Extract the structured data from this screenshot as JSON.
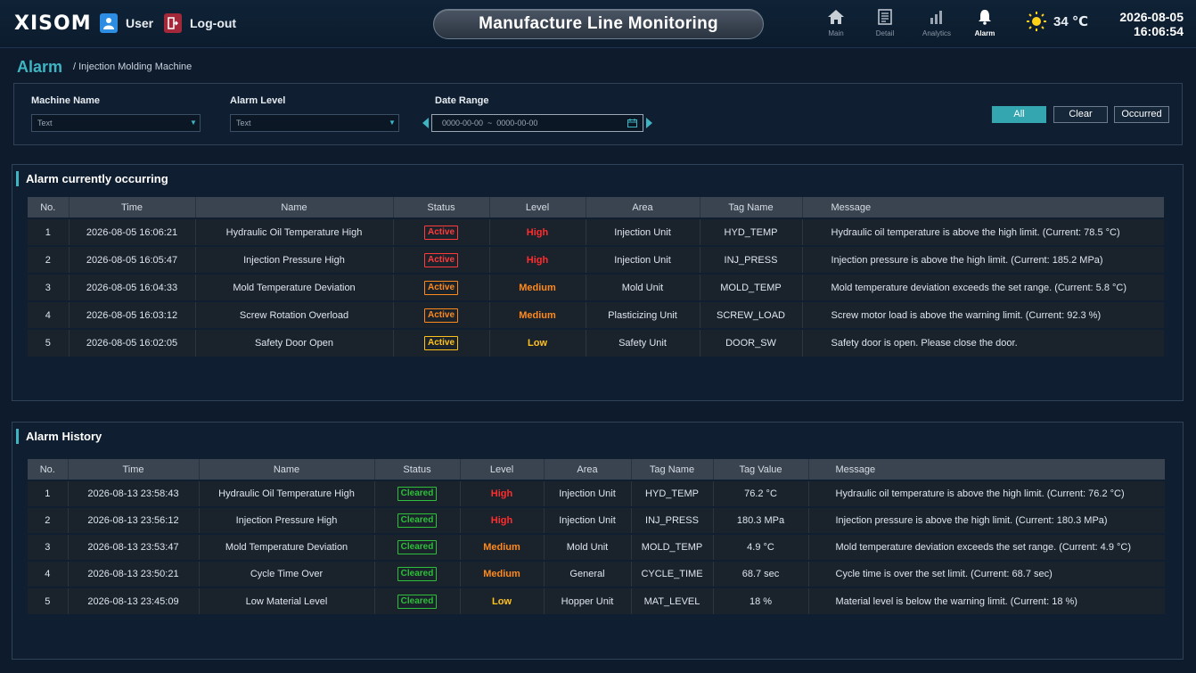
{
  "header": {
    "logo": "XISOM",
    "user_label": "User",
    "logout_label": "Log-out",
    "title": "Manufacture Line Monitoring",
    "nav": [
      {
        "label": "Main",
        "icon": "home-icon"
      },
      {
        "label": "Detail",
        "icon": "document-icon"
      },
      {
        "label": "Analytics",
        "icon": "bar-chart-icon"
      },
      {
        "label": "Alarm",
        "icon": "bell-icon"
      }
    ],
    "temperature": "34 ℃",
    "date": "2026-08-05",
    "time": "16:06:54"
  },
  "breadcrumb": {
    "title": "Alarm",
    "sub": "/ Injection Molding Machine"
  },
  "filter": {
    "machine_label": "Machine Name",
    "machine_value": "Text",
    "level_label": "Alarm Level",
    "level_value": "Text",
    "date_label": "Date Range",
    "date_value": "0000-00-00  ~  0000-00-00",
    "btn_all": "All",
    "btn_clear": "Clear",
    "btn_occurred": "Occurred"
  },
  "current": {
    "title": "Alarm currently occurring",
    "columns": [
      "No.",
      "Time",
      "Name",
      "Status",
      "Level",
      "Area",
      "Tag Name",
      "Message"
    ],
    "rows": [
      {
        "no": "1",
        "time": "2026-08-05 16:06:21",
        "name": "Hydraulic Oil Temperature High",
        "status": "Active",
        "level": "High",
        "area": "Injection Unit",
        "tag": "HYD_TEMP",
        "message": "Hydraulic oil temperature is above the high limit. (Current: 78.5 °C)"
      },
      {
        "no": "2",
        "time": "2026-08-05 16:05:47",
        "name": "Injection Pressure High",
        "status": "Active",
        "level": "High",
        "area": "Injection Unit",
        "tag": "INJ_PRESS",
        "message": "Injection pressure is above the high limit. (Current: 185.2 MPa)"
      },
      {
        "no": "3",
        "time": "2026-08-05 16:04:33",
        "name": "Mold Temperature Deviation",
        "status": "Active",
        "level": "Medium",
        "area": "Mold Unit",
        "tag": "MOLD_TEMP",
        "message": "Mold temperature deviation exceeds the set range. (Current: 5.8 °C)"
      },
      {
        "no": "4",
        "time": "2026-08-05 16:03:12",
        "name": "Screw Rotation Overload",
        "status": "Active",
        "level": "Medium",
        "area": "Plasticizing Unit",
        "tag": "SCREW_LOAD",
        "message": "Screw motor load is above the warning limit. (Current: 92.3 %)"
      },
      {
        "no": "5",
        "time": "2026-08-05 16:02:05",
        "name": "Safety Door Open",
        "status": "Active",
        "level": "Low",
        "area": "Safety Unit",
        "tag": "DOOR_SW",
        "message": "Safety door is open. Please close the door."
      }
    ]
  },
  "history": {
    "title": "Alarm History",
    "columns": [
      "No.",
      "Time",
      "Name",
      "Status",
      "Level",
      "Area",
      "Tag Name",
      "Tag Value",
      "Message"
    ],
    "rows": [
      {
        "no": "1",
        "time": "2026-08-13 23:58:43",
        "name": "Hydraulic Oil Temperature High",
        "status": "Cleared",
        "level": "High",
        "area": "Injection Unit",
        "tag": "HYD_TEMP",
        "value": "76.2 °C",
        "message": "Hydraulic oil temperature is above the high limit. (Current: 76.2 °C)"
      },
      {
        "no": "2",
        "time": "2026-08-13 23:56:12",
        "name": "Injection Pressure High",
        "status": "Cleared",
        "level": "High",
        "area": "Injection Unit",
        "tag": "INJ_PRESS",
        "value": "180.3 MPa",
        "message": "Injection pressure is above the high limit. (Current: 180.3 MPa)"
      },
      {
        "no": "3",
        "time": "2026-08-13 23:53:47",
        "name": "Mold Temperature Deviation",
        "status": "Cleared",
        "level": "Medium",
        "area": "Mold Unit",
        "tag": "MOLD_TEMP",
        "value": "4.9 °C",
        "message": "Mold temperature deviation exceeds the set range. (Current: 4.9 °C)"
      },
      {
        "no": "4",
        "time": "2026-08-13 23:50:21",
        "name": "Cycle Time Over",
        "status": "Cleared",
        "level": "Medium",
        "area": "General",
        "tag": "CYCLE_TIME",
        "value": "68.7 sec",
        "message": "Cycle time is over the set limit. (Current: 68.7 sec)"
      },
      {
        "no": "5",
        "time": "2026-08-13 23:45:09",
        "name": "Low Material Level",
        "status": "Cleared",
        "level": "Low",
        "area": "Hopper Unit",
        "tag": "MAT_LEVEL",
        "value": "18 %",
        "message": "Material level is below the warning limit. (Current: 18 %)"
      }
    ]
  },
  "colors": {
    "accent": "#3fb4c2",
    "level_high": "#ff2d2d",
    "level_medium": "#ff8a1c",
    "level_low": "#ffc21a",
    "status_active_high": "#ff3b3b",
    "status_active_medium": "#ff8a1c",
    "status_active_low": "#ffc21a",
    "status_cleared": "#2fbf3a"
  }
}
